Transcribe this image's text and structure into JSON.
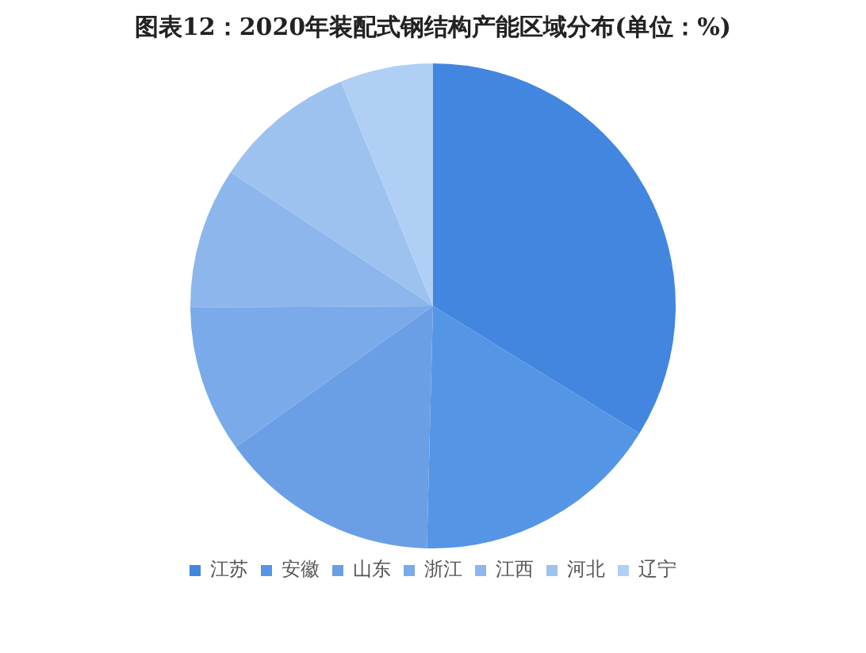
{
  "chart_data": {
    "type": "pie",
    "title": "图表12：2020年装配式钢结构产能区域分布(单位：%)",
    "categories": [
      "江苏",
      "安徽",
      "山东",
      "浙江",
      "江西",
      "河北",
      "辽宁"
    ],
    "values": [
      33.8,
      16.6,
      14.7,
      9.8,
      9.4,
      9.5,
      6.2
    ],
    "colors": [
      "#4286e0",
      "#5595e5",
      "#6a9fe6",
      "#7aaaea",
      "#8db6ec",
      "#9ec2f0",
      "#b0cff5"
    ],
    "legend": "bottom"
  }
}
